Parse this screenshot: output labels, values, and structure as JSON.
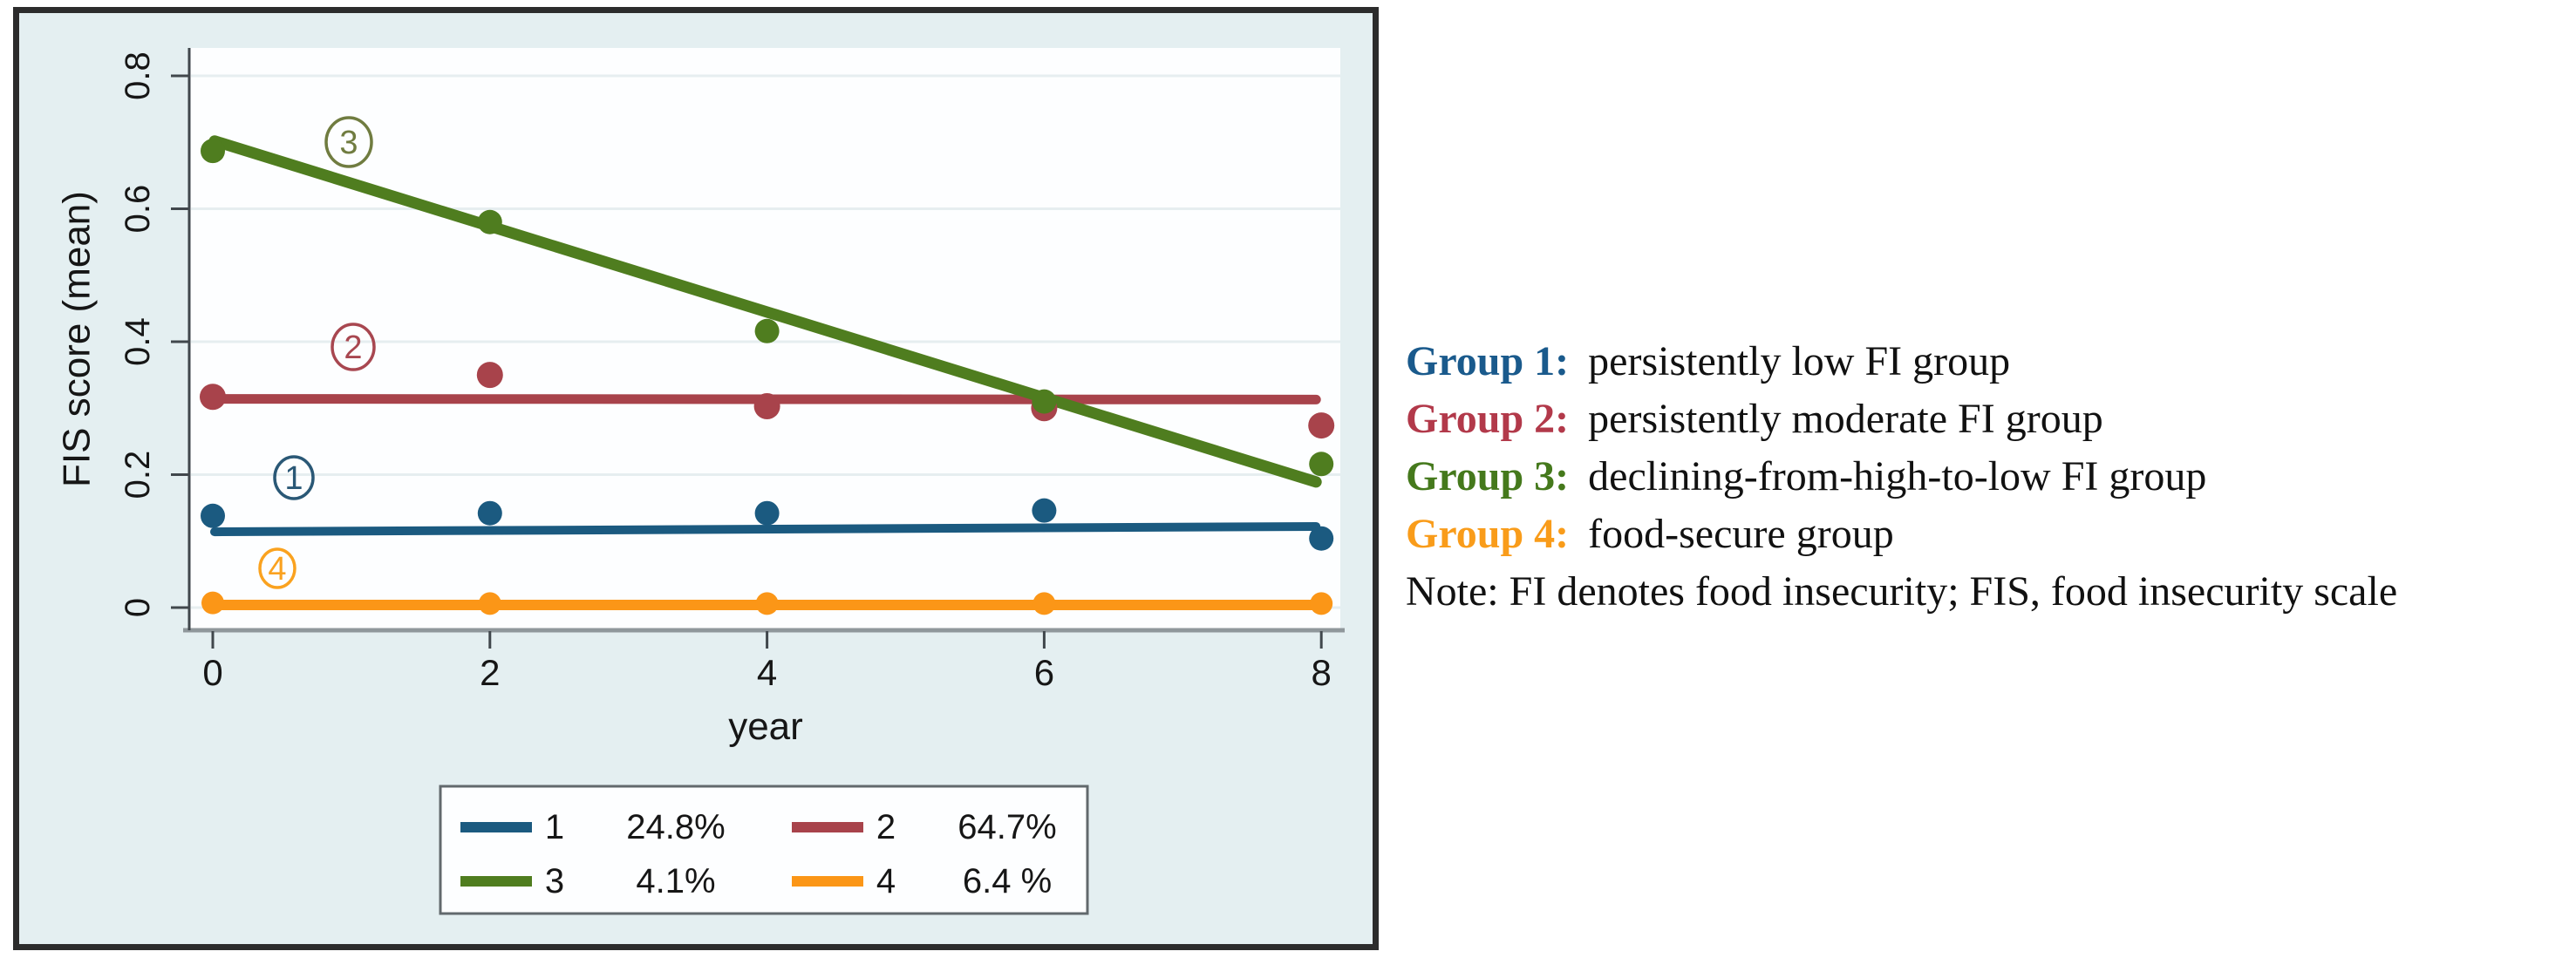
{
  "chart_data": {
    "type": "scatter",
    "title": "",
    "xlabel": "year",
    "ylabel": "FIS score (mean)",
    "x": [
      0,
      2,
      4,
      6,
      8
    ],
    "x_tick_labels": [
      "0",
      "2",
      "4",
      "6",
      "8"
    ],
    "y_tick_values": [
      0,
      0.2,
      0.4,
      0.6,
      0.8
    ],
    "y_tick_labels": [
      "0",
      "0.2",
      "0.4",
      "0.6",
      "0.8"
    ],
    "ylim": [
      -0.04,
      0.88
    ],
    "grid": "horizontal",
    "legend_position": "below-chart",
    "series": [
      {
        "name": "1",
        "share": "24.8%",
        "color": "#1b5a80",
        "points": [
          0.138,
          0.142,
          0.142,
          0.146,
          0.104
        ],
        "fit_line": [
          [
            0,
            0.114
          ],
          [
            8,
            0.122
          ]
        ]
      },
      {
        "name": "2",
        "share": "64.7%",
        "color": "#a8434b",
        "points": [
          0.317,
          0.35,
          0.303,
          0.3,
          0.274
        ],
        "fit_line": [
          [
            0,
            0.314
          ],
          [
            8,
            0.313
          ]
        ]
      },
      {
        "name": "3",
        "share": "4.1%",
        "color": "#4f7d1f",
        "points": [
          0.687,
          0.58,
          0.416,
          0.31,
          0.216
        ],
        "fit_line": [
          [
            0,
            0.702
          ],
          [
            8,
            0.189
          ]
        ]
      },
      {
        "name": "4",
        "share": "6.4 %",
        "color": "#fb9617",
        "points": [
          0.007,
          0.006,
          0.006,
          0.006,
          0.006
        ],
        "fit_line": [
          [
            0,
            0.004
          ],
          [
            8,
            0.004
          ]
        ]
      }
    ],
    "annotations": [
      {
        "num": "1",
        "color": "#2a5876",
        "x": 337,
        "y": 548
      },
      {
        "num": "2",
        "color": "#a84750",
        "x": 405,
        "y": 398
      },
      {
        "num": "3",
        "color": "#707c40",
        "x": 400,
        "y": 163
      },
      {
        "num": "4",
        "color": "#faa21f",
        "x": 318,
        "y": 652
      }
    ]
  },
  "notes": {
    "lines": [
      {
        "label": "Group 1:",
        "color": "#1a5a8c",
        "text": "persistently low FI group"
      },
      {
        "label": "Group 2:",
        "color": "#b2394a",
        "text": "persistently moderate FI group"
      },
      {
        "label": "Group 3:",
        "color": "#45791c",
        "text": "declining-from-high-to-low FI group"
      },
      {
        "label": "Group 4:",
        "color": "#f99c1a",
        "text": "food-secure group"
      },
      {
        "label": "",
        "color": "#111111",
        "text": "Note: FI denotes food insecurity; FIS, food insecurity scale"
      }
    ]
  },
  "colors": {
    "panel_background": "#e4eff1",
    "plot_background": "#fdfeff",
    "gridline": "#e6eef0",
    "x_axis_line": "#8f979b",
    "y_axis_line": "#40474c",
    "tick_text": "#161616",
    "legend_border": "#62696d",
    "panel_border": "#2c2c2c"
  }
}
